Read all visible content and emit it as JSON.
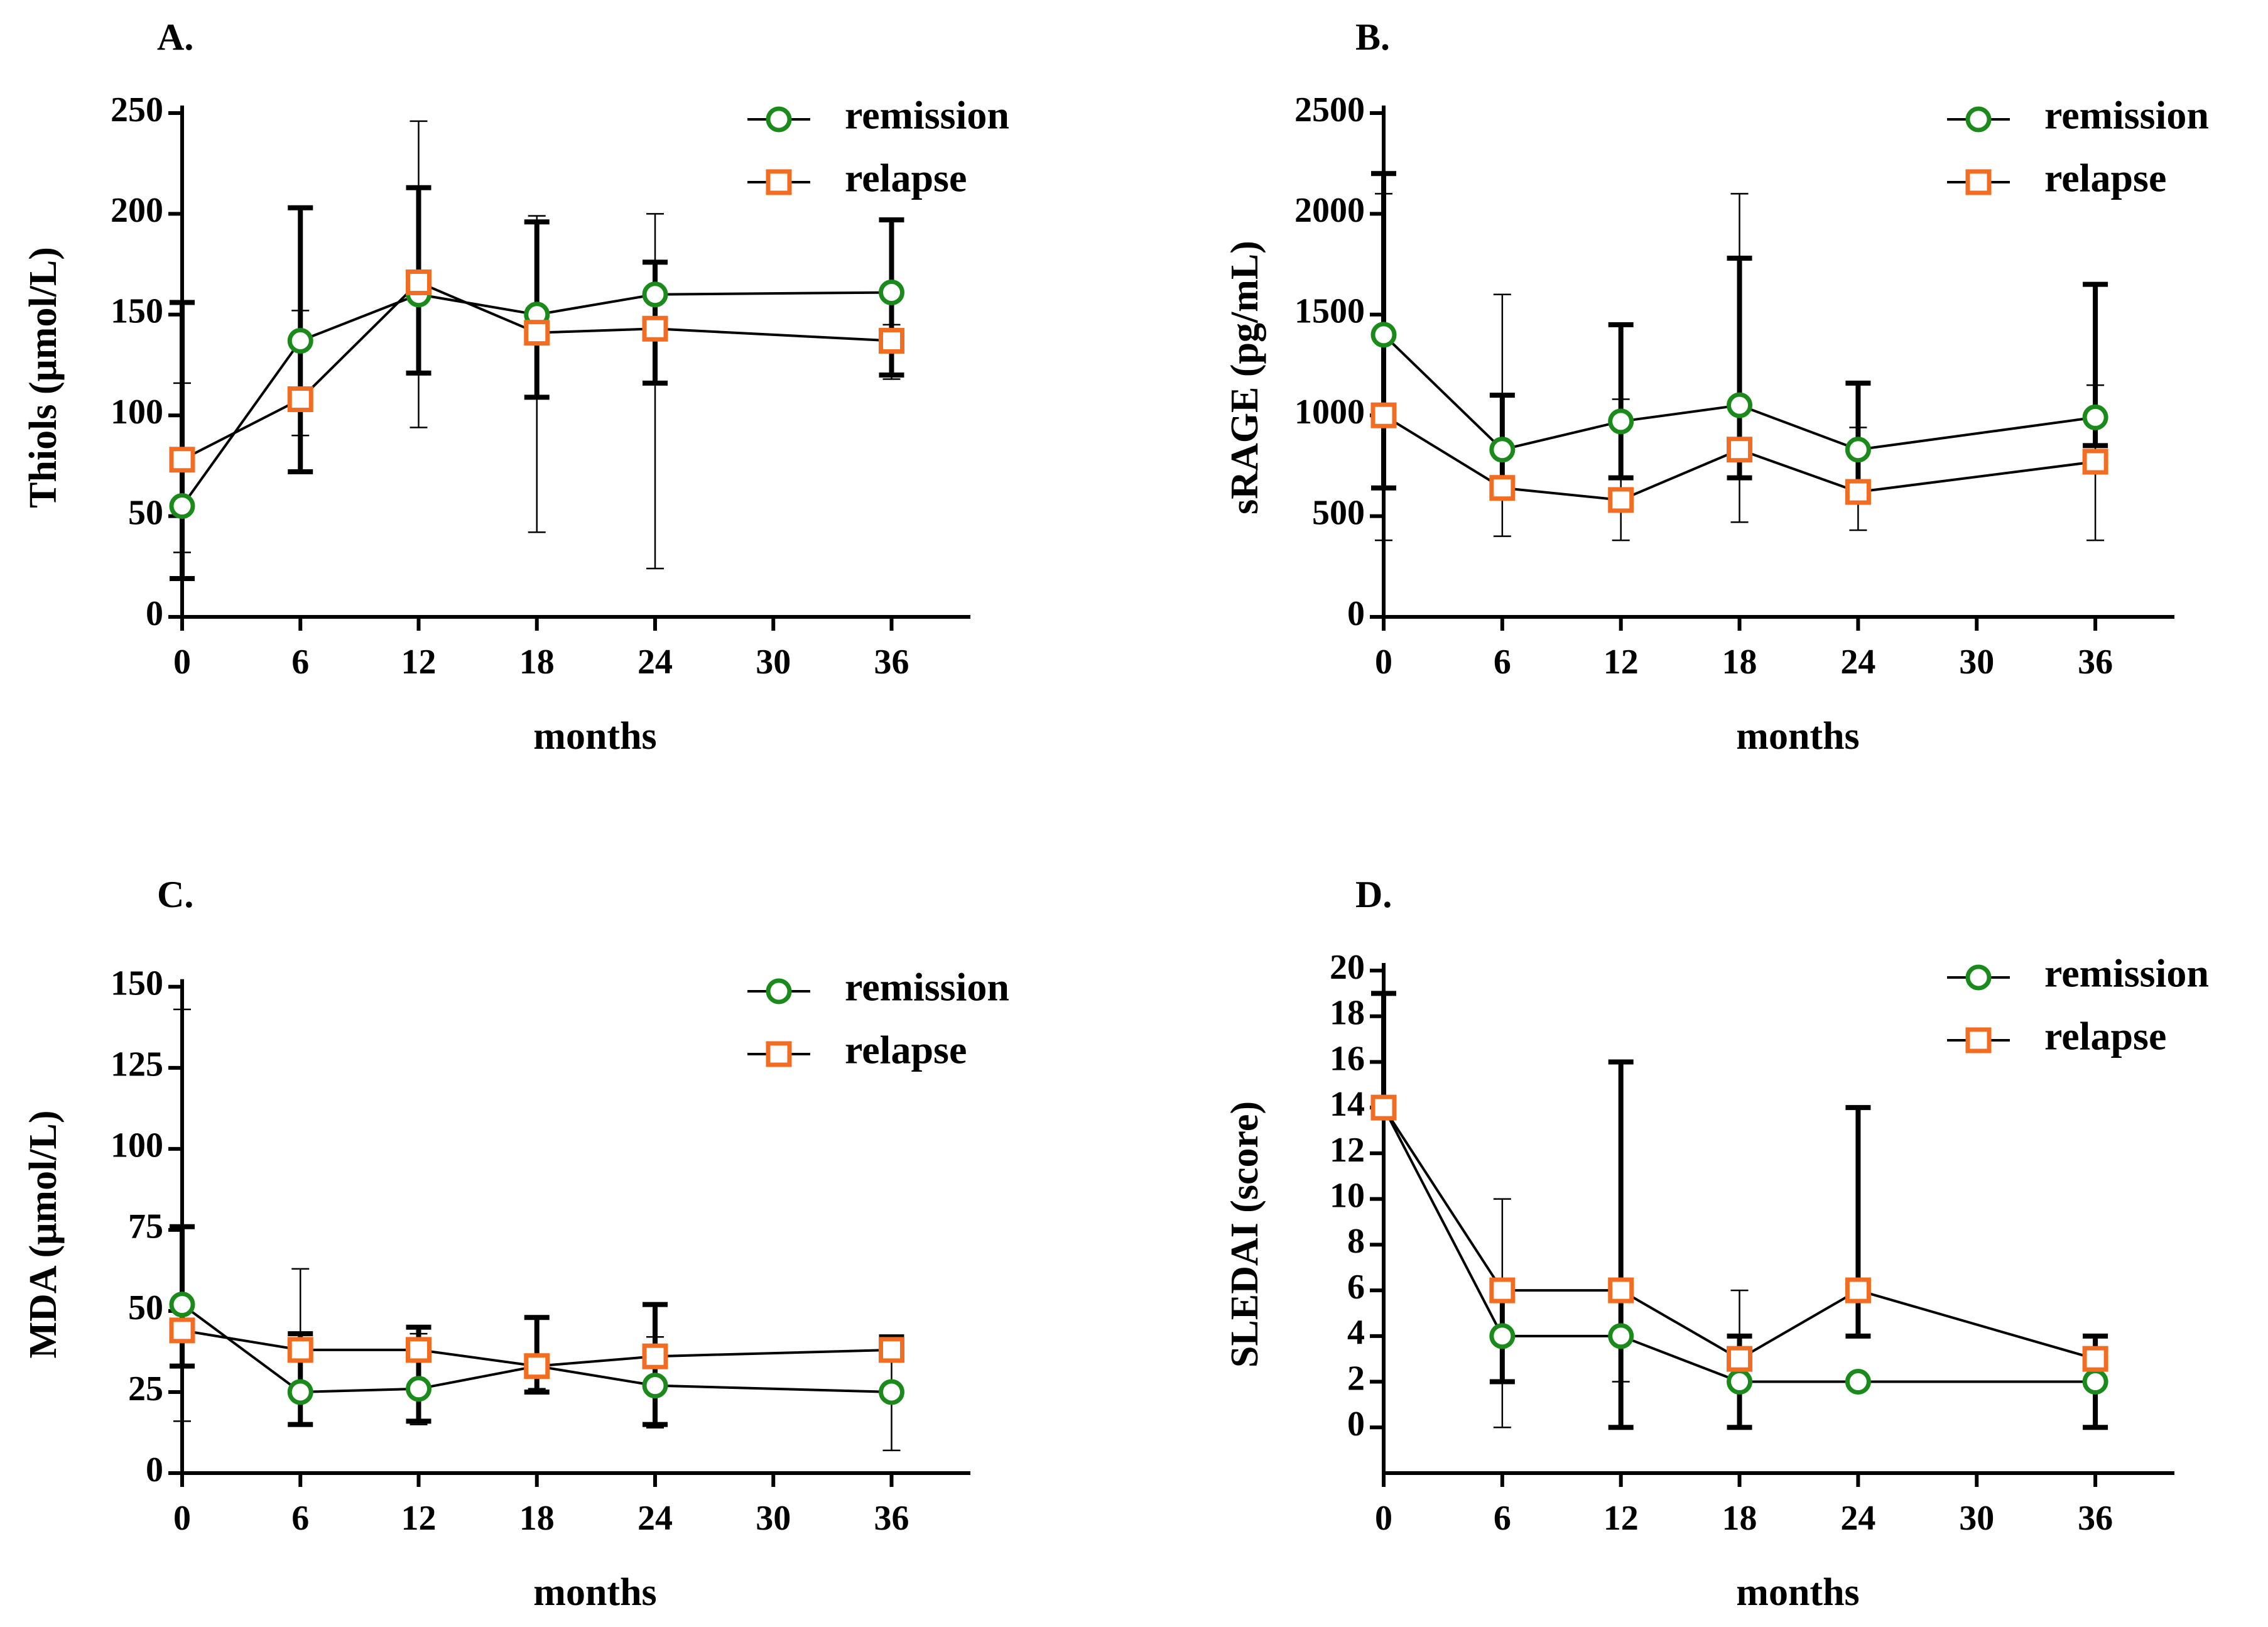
{
  "colors": {
    "remission": "#1a8a1a",
    "relapse": "#f26c21",
    "axis": "#000000"
  },
  "legend": {
    "remission": "remission",
    "relapse": "relapse"
  },
  "chart_data": [
    {
      "panel": "A.",
      "type": "line",
      "xlabel": "months",
      "ylabel": "Thiols (μmol/L)",
      "xlim": [
        0,
        40
      ],
      "ylim": [
        0,
        250
      ],
      "xticks": [
        0,
        6,
        12,
        18,
        24,
        30,
        36
      ],
      "yticks": [
        0,
        50,
        100,
        150,
        200,
        250
      ],
      "series": [
        {
          "name": "remission",
          "marker": "circle",
          "x": [
            0,
            6,
            12,
            18,
            24,
            36
          ],
          "values": [
            55,
            137,
            160,
            150,
            160,
            161
          ],
          "err_low": [
            32,
            90,
            94,
            42,
            24,
            118
          ],
          "err_high": [
            116,
            152,
            246,
            199,
            200,
            145
          ]
        },
        {
          "name": "relapse",
          "marker": "square",
          "x": [
            0,
            6,
            12,
            18,
            24,
            36
          ],
          "values": [
            78,
            108,
            166,
            141,
            143,
            137
          ],
          "err_low": [
            19,
            72,
            121,
            109,
            116,
            120
          ],
          "err_high": [
            156,
            203,
            213,
            196,
            176,
            197
          ]
        }
      ]
    },
    {
      "panel": "B.",
      "type": "line",
      "xlabel": "months",
      "ylabel": "sRAGE (pg/mL)",
      "xlim": [
        0,
        40
      ],
      "ylim": [
        0,
        2500
      ],
      "xticks": [
        0,
        6,
        12,
        18,
        24,
        30,
        36
      ],
      "yticks": [
        0,
        500,
        1000,
        1500,
        2000,
        2500
      ],
      "series": [
        {
          "name": "remission",
          "marker": "circle",
          "x": [
            0,
            6,
            12,
            18,
            24,
            36
          ],
          "values": [
            1400,
            830,
            970,
            1050,
            830,
            990
          ],
          "err_low": [
            380,
            400,
            380,
            470,
            430,
            380
          ],
          "err_high": [
            2100,
            1600,
            1080,
            2100,
            940,
            1150
          ]
        },
        {
          "name": "relapse",
          "marker": "square",
          "x": [
            0,
            6,
            12,
            18,
            24,
            36
          ],
          "values": [
            1000,
            640,
            580,
            830,
            620,
            770
          ],
          "err_low": [
            640,
            640,
            690,
            690,
            640,
            850
          ],
          "err_high": [
            2200,
            1100,
            1450,
            1780,
            1160,
            1650
          ]
        }
      ]
    },
    {
      "panel": "C.",
      "type": "line",
      "xlabel": "months",
      "ylabel": "MDA (μmol/L)",
      "xlim": [
        0,
        40
      ],
      "ylim": [
        0,
        155
      ],
      "xticks": [
        0,
        6,
        12,
        18,
        24,
        30,
        36
      ],
      "yticks": [
        0,
        25,
        50,
        75,
        100,
        125,
        150
      ],
      "series": [
        {
          "name": "remission",
          "marker": "circle",
          "x": [
            0,
            6,
            12,
            18,
            24,
            36
          ],
          "values": [
            52,
            25,
            26,
            33,
            27,
            25
          ],
          "err_low": [
            16,
            15,
            15,
            26,
            14,
            7
          ],
          "err_high": [
            143,
            63,
            43,
            48,
            42,
            42
          ]
        },
        {
          "name": "relapse",
          "marker": "square",
          "x": [
            0,
            6,
            12,
            18,
            24,
            36
          ],
          "values": [
            44,
            38,
            38,
            33,
            36,
            38
          ],
          "err_low": [
            33,
            15,
            16,
            25,
            15,
            42
          ],
          "err_high": [
            76,
            43,
            45,
            48,
            52,
            42
          ]
        }
      ]
    },
    {
      "panel": "D.",
      "type": "line",
      "xlabel": "months",
      "ylabel": "SLEDAI (score)",
      "xlim": [
        0,
        40
      ],
      "ylim": [
        -2,
        20
      ],
      "xticks": [
        0,
        6,
        12,
        18,
        24,
        30,
        36
      ],
      "yticks": [
        0,
        2,
        4,
        6,
        8,
        10,
        12,
        14,
        16,
        18,
        20
      ],
      "series": [
        {
          "name": "remission",
          "marker": "circle",
          "x": [
            0,
            6,
            12,
            18,
            24,
            36
          ],
          "values": [
            14,
            4,
            4,
            2,
            2,
            2
          ],
          "err_low": [
            14,
            0,
            2,
            0,
            2,
            2
          ],
          "err_high": [
            14,
            10,
            6,
            6,
            2,
            2
          ]
        },
        {
          "name": "relapse",
          "marker": "square",
          "x": [
            0,
            6,
            12,
            18,
            24,
            36
          ],
          "values": [
            14,
            6,
            6,
            3,
            6,
            3
          ],
          "err_low": [
            14,
            2,
            0,
            0,
            4,
            0
          ],
          "err_high": [
            19,
            6,
            16,
            4,
            14,
            4
          ]
        }
      ]
    }
  ]
}
